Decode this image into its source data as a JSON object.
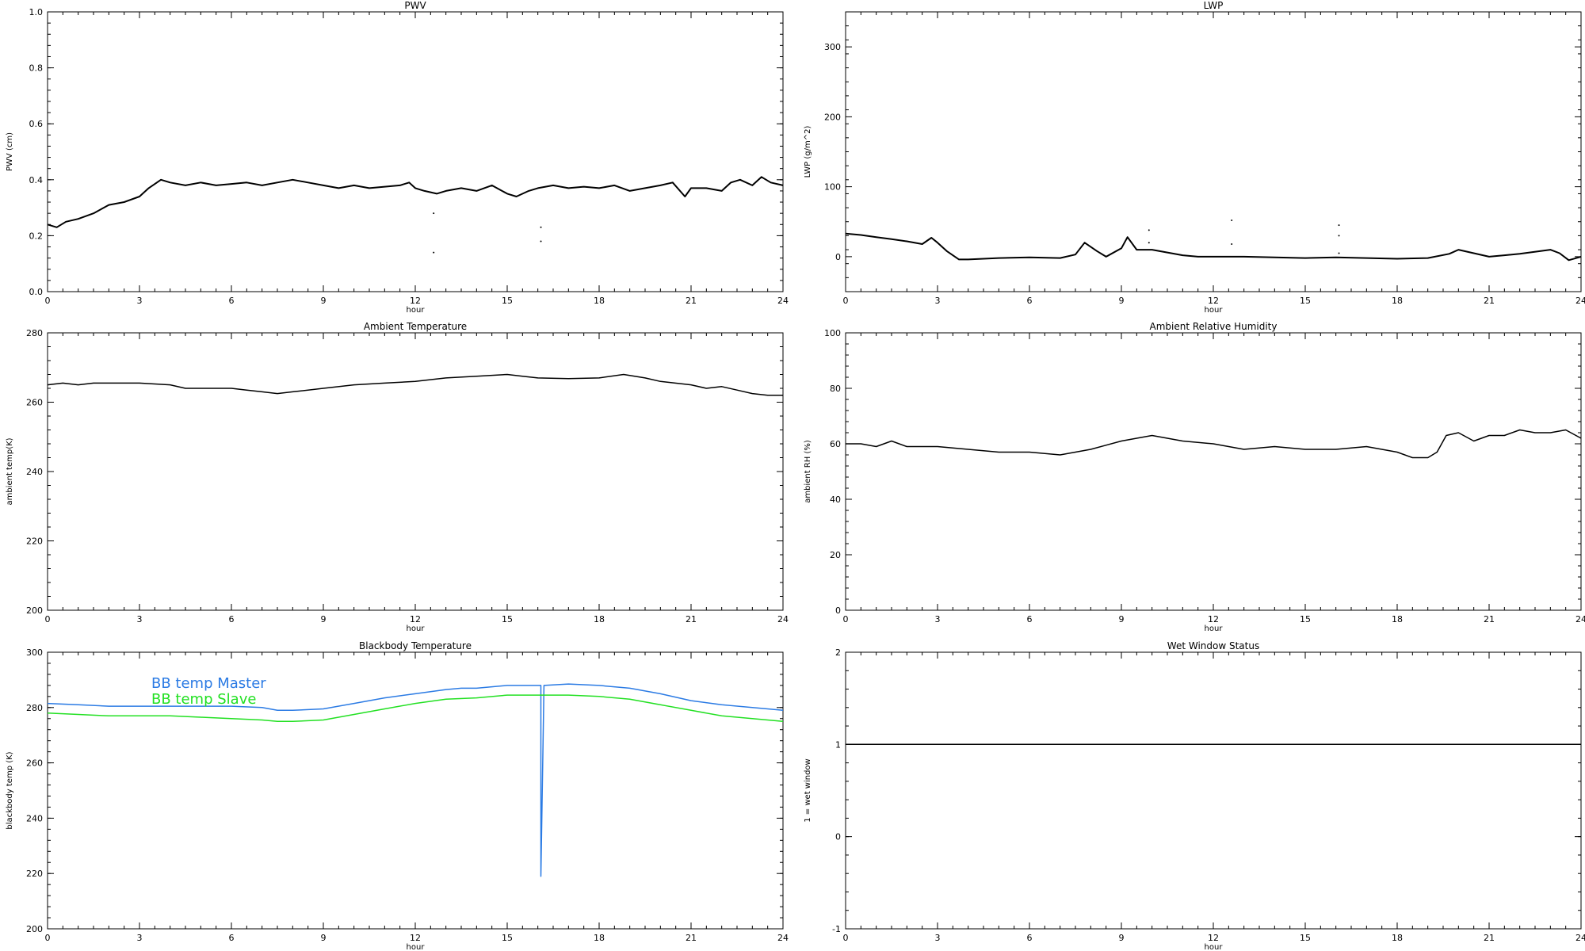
{
  "chart_data": [
    {
      "id": "pwv",
      "type": "line",
      "title": "PWV",
      "xlabel": "hour",
      "ylabel": "PWV (cm)",
      "xlim": [
        0,
        24
      ],
      "ylim": [
        0,
        1
      ],
      "xticks": [
        0,
        3,
        6,
        9,
        12,
        15,
        18,
        21,
        24
      ],
      "yticks": [
        "0.0",
        "0.2",
        "0.4",
        "0.6",
        "0.8",
        "1.0"
      ],
      "series": [
        {
          "color": "#000000",
          "x": [
            0,
            0.3,
            0.6,
            1,
            1.5,
            2,
            2.5,
            3,
            3.3,
            3.7,
            4,
            4.5,
            5,
            5.5,
            6,
            6.5,
            7,
            7.5,
            8,
            8.5,
            9,
            9.5,
            10,
            10.5,
            11,
            11.5,
            11.8,
            12,
            12.3,
            12.7,
            13,
            13.5,
            14,
            14.5,
            15,
            15.3,
            15.7,
            16,
            16.5,
            17,
            17.5,
            18,
            18.5,
            19,
            19.5,
            20,
            20.4,
            20.8,
            21,
            21.5,
            22,
            22.3,
            22.6,
            23,
            23.3,
            23.6,
            24
          ],
          "y": [
            0.24,
            0.23,
            0.25,
            0.26,
            0.28,
            0.31,
            0.32,
            0.34,
            0.37,
            0.4,
            0.39,
            0.38,
            0.39,
            0.38,
            0.385,
            0.39,
            0.38,
            0.39,
            0.4,
            0.39,
            0.38,
            0.37,
            0.38,
            0.37,
            0.375,
            0.38,
            0.39,
            0.37,
            0.36,
            0.35,
            0.36,
            0.37,
            0.36,
            0.38,
            0.35,
            0.34,
            0.36,
            0.37,
            0.38,
            0.37,
            0.375,
            0.37,
            0.38,
            0.36,
            0.37,
            0.38,
            0.39,
            0.34,
            0.37,
            0.37,
            0.36,
            0.39,
            0.4,
            0.38,
            0.41,
            0.39,
            0.38
          ]
        }
      ],
      "scatter": [
        [
          12.6,
          0.28
        ],
        [
          12.6,
          0.14
        ],
        [
          16.1,
          0.23
        ],
        [
          16.1,
          0.18
        ]
      ]
    },
    {
      "id": "lwp",
      "type": "line",
      "title": "LWP",
      "xlabel": "hour",
      "ylabel": "LWP (g/m^2)",
      "xlim": [
        0,
        24
      ],
      "ylim": [
        -50,
        350
      ],
      "xticks": [
        0,
        3,
        6,
        9,
        12,
        15,
        18,
        21,
        24
      ],
      "yticks": [
        "0",
        "100",
        "200",
        "300"
      ],
      "series": [
        {
          "color": "#000000",
          "x": [
            0,
            0.5,
            1,
            1.5,
            2,
            2.5,
            2.8,
            3,
            3.3,
            3.7,
            4,
            5,
            6,
            7,
            7.5,
            7.8,
            8.2,
            8.5,
            9,
            9.2,
            9.5,
            10,
            10.5,
            11,
            11.5,
            12,
            13,
            14,
            15,
            16,
            17,
            18,
            19,
            19.7,
            20,
            21,
            21.5,
            22,
            23,
            23.3,
            23.6,
            24
          ],
          "y": [
            33,
            31,
            28,
            25,
            22,
            18,
            27,
            20,
            8,
            -4,
            -4,
            -2,
            -1,
            -2,
            3,
            20,
            8,
            0,
            12,
            28,
            10,
            10,
            6,
            2,
            0,
            0,
            0,
            -1,
            -2,
            -1,
            -2,
            -3,
            -2,
            4,
            10,
            0,
            2,
            4,
            10,
            5,
            -5,
            0
          ]
        }
      ],
      "scatter": [
        [
          9.9,
          38
        ],
        [
          9.9,
          20
        ],
        [
          12.6,
          52
        ],
        [
          12.6,
          18
        ],
        [
          16.1,
          45
        ],
        [
          16.1,
          30
        ],
        [
          16.1,
          5
        ]
      ]
    },
    {
      "id": "ambient-temp",
      "type": "line",
      "title": "Ambient Temperature",
      "xlabel": "hour",
      "ylabel": "ambient temp(K)",
      "xlim": [
        0,
        24
      ],
      "ylim": [
        200,
        280
      ],
      "xticks": [
        0,
        3,
        6,
        9,
        12,
        15,
        18,
        21,
        24
      ],
      "yticks": [
        "200",
        "220",
        "240",
        "260",
        "280"
      ],
      "series": [
        {
          "color": "#000000",
          "x": [
            0,
            0.5,
            1,
            1.5,
            2,
            3,
            4,
            4.5,
            5,
            6,
            6.5,
            7,
            7.5,
            8,
            9,
            10,
            11,
            12,
            13,
            14,
            15,
            15.5,
            16,
            17,
            18,
            18.8,
            19.5,
            20,
            21,
            21.5,
            22,
            22.5,
            23,
            23.5,
            24
          ],
          "y": [
            265,
            265.5,
            265,
            265.5,
            265.5,
            265.5,
            265,
            264,
            264,
            264,
            263.5,
            263,
            262.5,
            263,
            264,
            265,
            265.5,
            266,
            267,
            267.5,
            268,
            267.5,
            267,
            266.8,
            267,
            268,
            267,
            266,
            265,
            264,
            264.5,
            263.5,
            262.5,
            262,
            262
          ]
        }
      ],
      "scatter": []
    },
    {
      "id": "ambient-rh",
      "type": "line",
      "title": "Ambient Relative Humidity",
      "xlabel": "hour",
      "ylabel": "ambient RH (%)",
      "xlim": [
        0,
        24
      ],
      "ylim": [
        0,
        100
      ],
      "xticks": [
        0,
        3,
        6,
        9,
        12,
        15,
        18,
        21,
        24
      ],
      "yticks": [
        "0",
        "20",
        "40",
        "60",
        "80",
        "100"
      ],
      "series": [
        {
          "color": "#000000",
          "x": [
            0,
            0.5,
            1,
            1.5,
            2,
            3,
            4,
            5,
            6,
            7,
            8,
            9,
            9.5,
            10,
            11,
            12,
            13,
            14,
            15,
            16,
            17,
            17.5,
            18,
            18.5,
            19,
            19.3,
            19.6,
            20,
            20.5,
            21,
            21.5,
            22,
            22.5,
            23,
            23.5,
            24
          ],
          "y": [
            60,
            60,
            59,
            61,
            59,
            59,
            58,
            57,
            57,
            56,
            58,
            61,
            62,
            63,
            61,
            60,
            58,
            59,
            58,
            58,
            59,
            58,
            57,
            55,
            55,
            57,
            63,
            64,
            61,
            63,
            63,
            65,
            64,
            64,
            65,
            62
          ]
        }
      ],
      "scatter": []
    },
    {
      "id": "blackbody-temp",
      "type": "line",
      "title": "Blackbody Temperature",
      "xlabel": "hour",
      "ylabel": "blackbody temp (K)",
      "xlim": [
        0,
        24
      ],
      "ylim": [
        200,
        300
      ],
      "xticks": [
        0,
        3,
        6,
        9,
        12,
        15,
        18,
        21,
        24
      ],
      "yticks": [
        "200",
        "220",
        "240",
        "260",
        "280",
        "300"
      ],
      "legend": [
        {
          "label": "BB temp Master",
          "color": "#2b7be4"
        },
        {
          "label": "BB temp Slave",
          "color": "#22e022"
        }
      ],
      "series": [
        {
          "name": "BB temp Master",
          "color": "#2b7be4",
          "x": [
            0,
            1,
            2,
            3,
            4,
            5,
            6,
            7,
            7.5,
            8,
            9,
            10,
            11,
            12,
            13,
            13.5,
            14,
            15,
            16,
            16.1,
            16.1,
            16.2,
            17,
            18,
            19,
            20,
            21,
            22,
            23,
            24
          ],
          "y": [
            281.5,
            281,
            280.5,
            280.5,
            280.5,
            280.5,
            280.5,
            280,
            279,
            279,
            279.5,
            281.5,
            283.5,
            285,
            286.5,
            287,
            287,
            288,
            288,
            288,
            219,
            288,
            288.5,
            288,
            287,
            285,
            282.5,
            281,
            280,
            279
          ]
        },
        {
          "name": "BB temp Slave",
          "color": "#22e022",
          "x": [
            0,
            1,
            2,
            3,
            4,
            5,
            6,
            7,
            7.5,
            8,
            9,
            10,
            11,
            12,
            13,
            14,
            15,
            16,
            17,
            18,
            19,
            20,
            21,
            22,
            23,
            24
          ],
          "y": [
            278,
            277.5,
            277,
            277,
            277,
            276.5,
            276,
            275.5,
            275,
            275,
            275.5,
            277.5,
            279.5,
            281.5,
            283,
            283.5,
            284.5,
            284.5,
            284.5,
            284,
            283,
            281,
            279,
            277,
            276,
            275
          ]
        }
      ],
      "scatter": []
    },
    {
      "id": "wet-window",
      "type": "line",
      "title": "Wet Window Status",
      "xlabel": "hour",
      "ylabel": "1 = wet window",
      "xlim": [
        0,
        24
      ],
      "ylim": [
        -1,
        2
      ],
      "xticks": [
        0,
        3,
        6,
        9,
        12,
        15,
        18,
        21,
        24
      ],
      "yticks": [
        "-1",
        "0",
        "1",
        "2"
      ],
      "series": [
        {
          "color": "#000000",
          "x": [
            0,
            24
          ],
          "y": [
            1,
            1
          ]
        }
      ],
      "scatter": []
    }
  ]
}
